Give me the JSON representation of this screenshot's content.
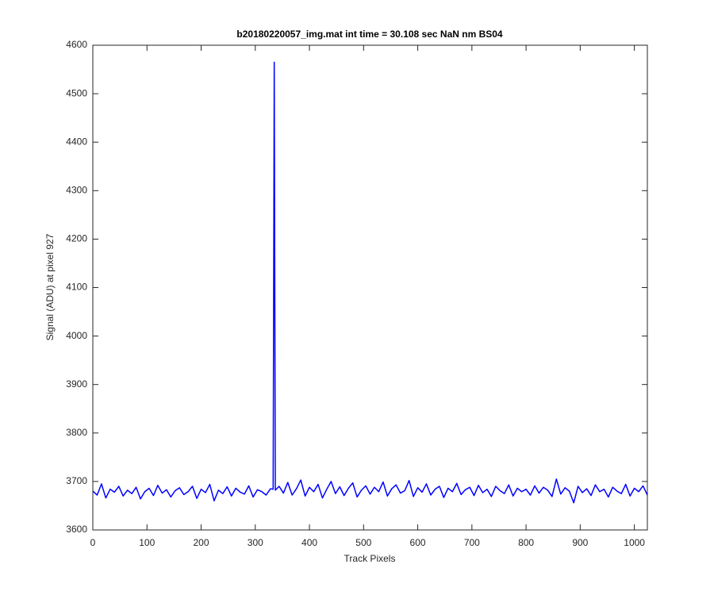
{
  "chart_data": {
    "type": "line",
    "title": "b20180220057_img.mat int time = 30.108 sec  NaN nm BS04",
    "xlabel": "Track Pixels",
    "ylabel": "Signal (ADU) at pixel 927",
    "color": "#0000ff",
    "x": [
      0,
      8,
      16,
      24,
      32,
      40,
      48,
      56,
      64,
      72,
      80,
      88,
      96,
      104,
      112,
      120,
      128,
      136,
      144,
      152,
      160,
      168,
      176,
      184,
      192,
      200,
      208,
      216,
      224,
      232,
      240,
      248,
      256,
      264,
      272,
      280,
      288,
      296,
      304,
      312,
      320,
      328,
      333,
      335,
      337,
      344,
      352,
      360,
      368,
      376,
      384,
      392,
      400,
      408,
      416,
      424,
      432,
      440,
      448,
      456,
      464,
      472,
      480,
      488,
      496,
      504,
      512,
      520,
      528,
      536,
      544,
      552,
      560,
      568,
      576,
      584,
      592,
      600,
      608,
      616,
      624,
      632,
      640,
      648,
      656,
      664,
      672,
      680,
      688,
      696,
      704,
      712,
      720,
      728,
      736,
      744,
      752,
      760,
      768,
      776,
      784,
      792,
      800,
      808,
      816,
      824,
      832,
      840,
      848,
      856,
      864,
      872,
      880,
      888,
      896,
      904,
      912,
      920,
      928,
      936,
      944,
      952,
      960,
      968,
      976,
      984,
      992,
      1000,
      1008,
      1016,
      1024
    ],
    "values": [
      3680,
      3672,
      3695,
      3666,
      3684,
      3678,
      3690,
      3670,
      3682,
      3675,
      3688,
      3664,
      3679,
      3686,
      3671,
      3692,
      3676,
      3683,
      3668,
      3681,
      3687,
      3673,
      3679,
      3690,
      3665,
      3684,
      3677,
      3694,
      3660,
      3682,
      3675,
      3689,
      3670,
      3686,
      3678,
      3674,
      3691,
      3668,
      3683,
      3679,
      3672,
      3685,
      3684,
      4565,
      3682,
      3690,
      3676,
      3698,
      3672,
      3685,
      3703,
      3670,
      3688,
      3679,
      3694,
      3666,
      3684,
      3700,
      3675,
      3689,
      3671,
      3686,
      3697,
      3668,
      3682,
      3691,
      3674,
      3688,
      3679,
      3699,
      3670,
      3685,
      3693,
      3676,
      3681,
      3702,
      3669,
      3687,
      3678,
      3695,
      3672,
      3684,
      3690,
      3667,
      3686,
      3679,
      3696,
      3673,
      3683,
      3688,
      3671,
      3692,
      3677,
      3684,
      3669,
      3690,
      3681,
      3675,
      3693,
      3670,
      3686,
      3679,
      3684,
      3672,
      3691,
      3676,
      3688,
      3682,
      3669,
      3705,
      3674,
      3687,
      3680,
      3656,
      3690,
      3677,
      3685,
      3671,
      3693,
      3679,
      3684,
      3668,
      3688,
      3680,
      3675,
      3694,
      3670,
      3686,
      3679,
      3691,
      3672
    ],
    "xlim": [
      0,
      1024
    ],
    "xticks": [
      0,
      100,
      200,
      300,
      400,
      500,
      600,
      700,
      800,
      900,
      1000
    ],
    "ylim": [
      3600,
      4600
    ],
    "yticks": [
      3600,
      3700,
      3800,
      3900,
      4000,
      4100,
      4200,
      4300,
      4400,
      4500,
      4600
    ]
  }
}
